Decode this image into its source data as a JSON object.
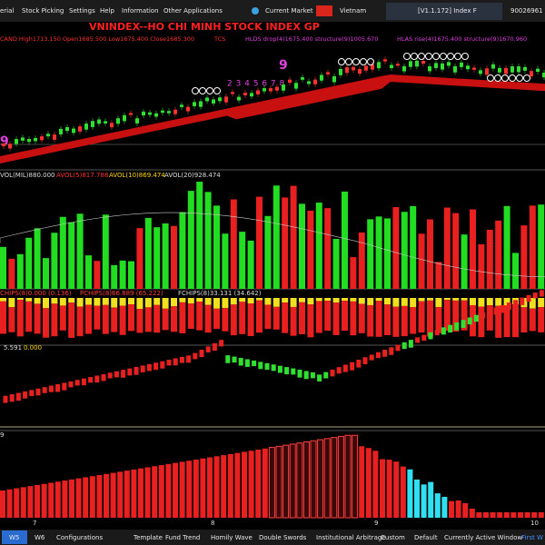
{
  "menu": {
    "items": [
      "erial",
      "Stock Picking",
      "Settings",
      "Help",
      "Information",
      "Other Applications"
    ],
    "market": "Current Market",
    "country": "Vietnam",
    "version": "[V1.1.172] Index F",
    "account": "90026961"
  },
  "main_panel": {
    "ohlc": "CAND High1713.150 Open1685.500 Low1675.400 Close1685.300",
    "tcs": "TCS",
    "title": "VNINDEX--HO CHI MINH STOCK INDEX  GP",
    "hlds": "HLDS drop(4)1675.400 structure(9)1005.670",
    "hlas": "HLAS rise(4)1675.400 structure(9)1670.960",
    "count_left": "9",
    "count_seq": "2 3 4 5 6 7 8",
    "count_mid": "9"
  },
  "volume_panel": {
    "vol": "VOL(MIL)880.000",
    "avol5": "AVOL(5)817.788",
    "avol10": "AVOL(10)869.474",
    "avol20": "AVOL(20)928.474"
  },
  "chips_panel": {
    "chips": "CHIPS(8)0.000 (0.136)",
    "pchips": "PCHIPS(8)66.889 (65.222)",
    "fchips": "FCHIPS(8)33.131 (34.642)"
  },
  "trend_panel": {
    "value": "5.591",
    "value2": "0.000"
  },
  "bar_panel": {
    "label": "9"
  },
  "x_axis": [
    "7",
    "8",
    "9",
    "10"
  ],
  "tabs": [
    "W5",
    "W6",
    "Configurations",
    "Template",
    "Fund Trend",
    "Homily Wave",
    "Double Swords",
    "Institutional Arbitrage",
    "Custom",
    "Default",
    "Currently Active Window",
    "First W"
  ]
}
